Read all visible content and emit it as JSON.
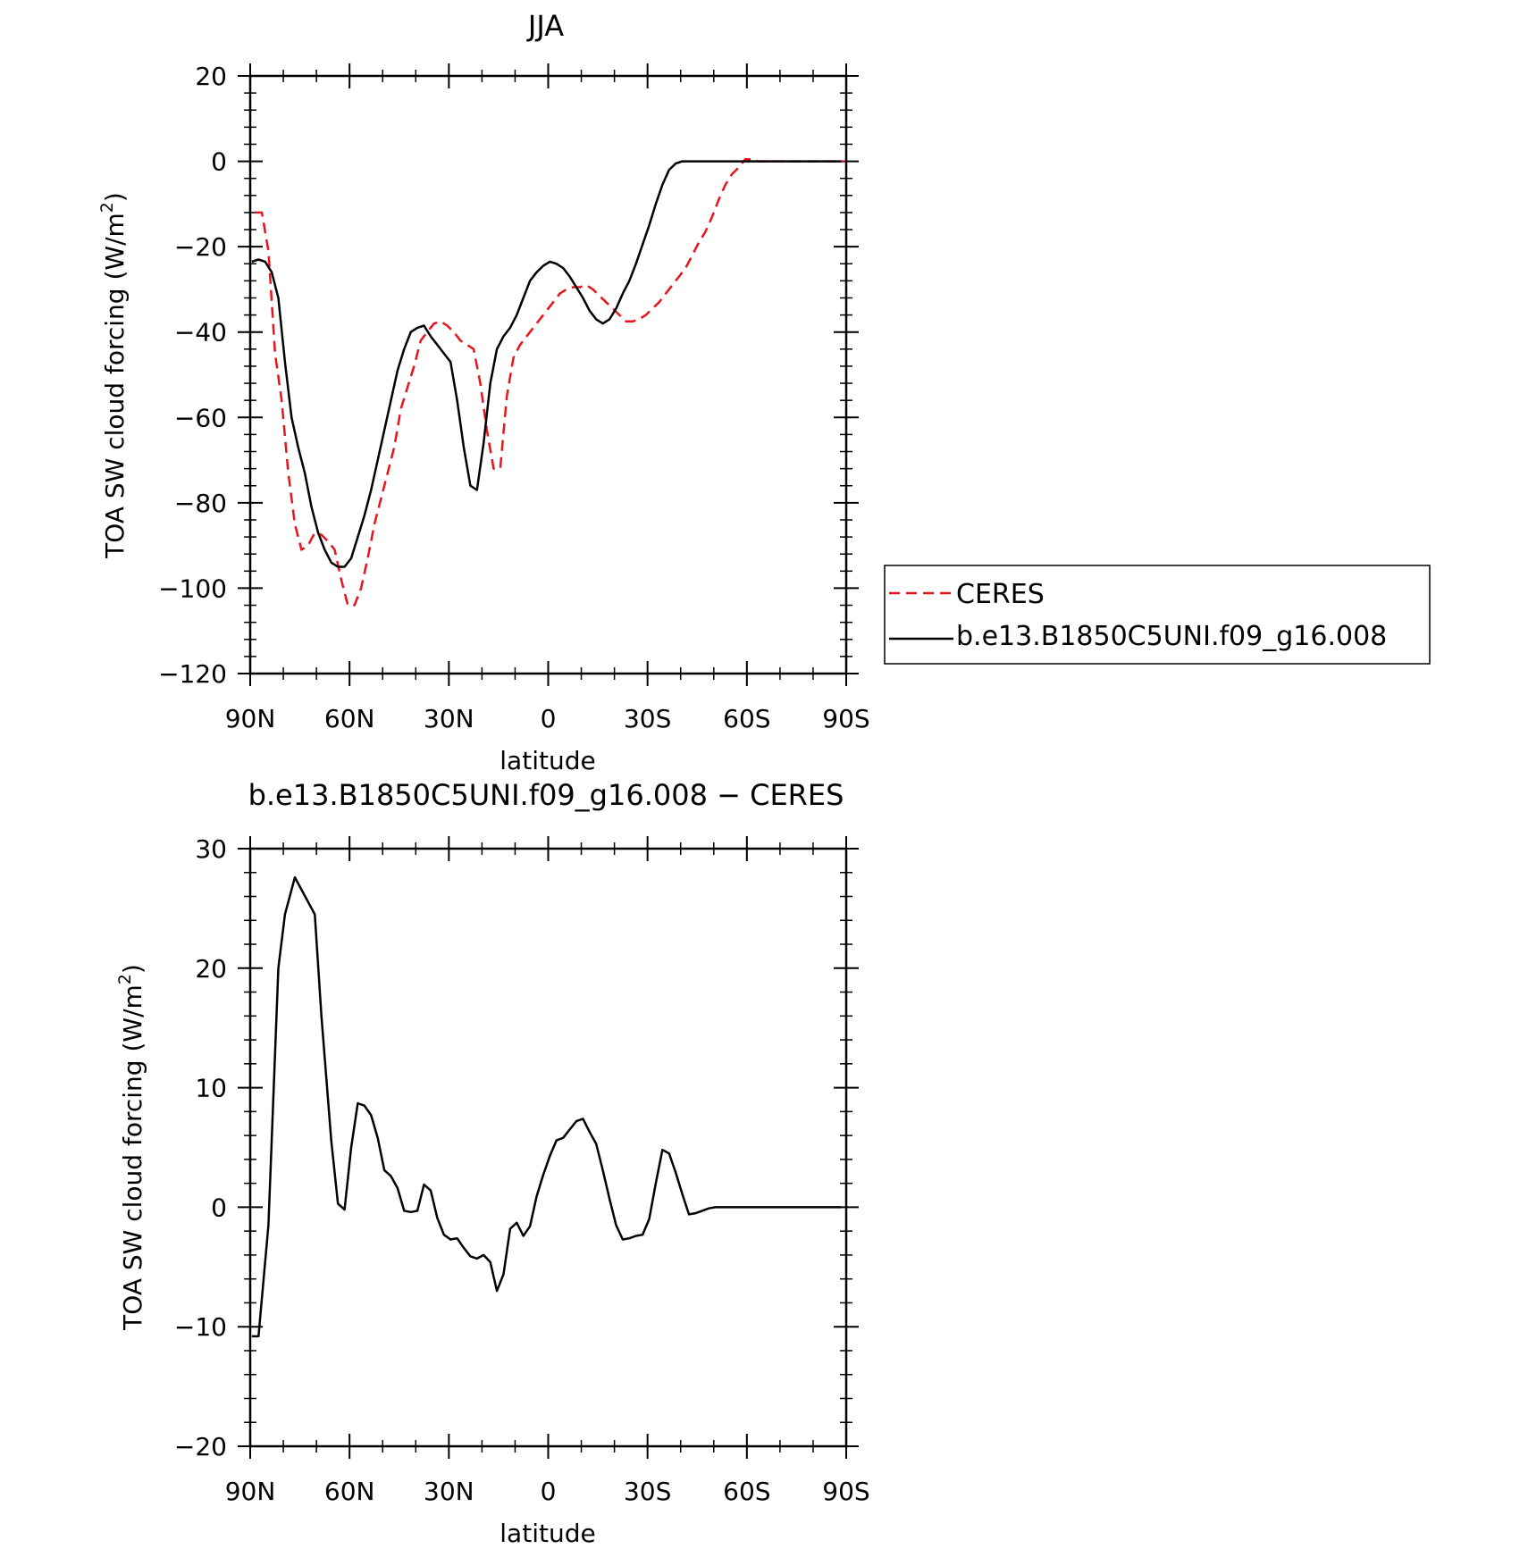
{
  "chart_data": [
    {
      "type": "line",
      "title": "JJA",
      "xlabel": "latitude",
      "ylabel": "TOA SW cloud forcing (W/m²)",
      "ylabel_base": "TOA SW cloud forcing (W/m",
      "ylabel_sup": "2",
      "ylabel_end": ")",
      "xlim": [
        90,
        -90
      ],
      "ylim": [
        -120,
        20
      ],
      "xticks": [
        90,
        60,
        30,
        0,
        -30,
        -60,
        -90
      ],
      "xticklabels": [
        "90N",
        "60N",
        "30N",
        "0",
        "30S",
        "60S",
        "90S"
      ],
      "yticks": [
        -120,
        -100,
        -80,
        -60,
        -40,
        -20,
        0,
        20
      ],
      "yticklabels": [
        "−120",
        "−100",
        "−80",
        "−60",
        "−40",
        "−20",
        "0",
        "20"
      ],
      "legend_position": "right",
      "series": [
        {
          "name": "CERES",
          "color": "#e8141c",
          "dash": true,
          "x": [
            88.5,
            86.5,
            84.5,
            82.5,
            80.5,
            78.5,
            76.5,
            74.5,
            72.5,
            70.5,
            68.5,
            66.5,
            64.5,
            62.5,
            60.5,
            58.5,
            56.5,
            54.5,
            52.5,
            50.5,
            48.5,
            46.5,
            44.5,
            42.5,
            40.5,
            38.5,
            36.5,
            34.5,
            32.5,
            30.5,
            28.5,
            26.5,
            24.5,
            22.5,
            20.5,
            18.5,
            16.5,
            14.5,
            12.5,
            10.5,
            8.5,
            6.5,
            4.5,
            2.5,
            0.5,
            -1.5,
            -3.5,
            -5.5,
            -7.5,
            -9.5,
            -11.5,
            -13.5,
            -15.5,
            -17.5,
            -19.5,
            -21.5,
            -23.5,
            -25.5,
            -27.5,
            -29.5,
            -31.5,
            -33.5,
            -35.5,
            -37.5,
            -39.5,
            -41.5,
            -43.5,
            -45.5,
            -47.5,
            -49.5,
            -51.5,
            -53.5,
            -55.5,
            -57.5,
            -59.5,
            -61.5,
            -63.5,
            -65.5,
            -67.5,
            -69.5,
            -71.5,
            -73.5,
            -75.5,
            -77.5,
            -79.5,
            -81.5,
            -83.5,
            -85.5,
            -87.5,
            -89.5
          ],
          "y": [
            -12,
            -12,
            -21,
            -45,
            -56,
            -73,
            -85,
            -91,
            -90,
            -87,
            -87.5,
            -89,
            -91,
            -98,
            -104,
            -104,
            -100,
            -93,
            -85,
            -79,
            -73,
            -67,
            -58,
            -53,
            -48,
            -42,
            -40,
            -38,
            -37.5,
            -38.5,
            -40,
            -42,
            -43,
            -44,
            -52,
            -63,
            -72,
            -72,
            -55,
            -46,
            -43,
            -41,
            -39,
            -37,
            -35,
            -33,
            -31,
            -30,
            -29.5,
            -29.5,
            -29,
            -30,
            -31.5,
            -33,
            -34.5,
            -36,
            -37.5,
            -37.5,
            -37,
            -36,
            -34.5,
            -33,
            -31,
            -29,
            -27,
            -25,
            -22,
            -19,
            -16.5,
            -13,
            -9,
            -5.5,
            -3,
            -1.5,
            0.5,
            0.5,
            0,
            0,
            0,
            0,
            0,
            0,
            0,
            0,
            0,
            0,
            0,
            0,
            0,
            0
          ]
        },
        {
          "name": "b.e13.B1850C5UNI.f09_g16.008",
          "color": "#000000",
          "dash": false,
          "x": [
            89.5,
            87.5,
            85.5,
            83.5,
            81.5,
            79.5,
            77.5,
            75.5,
            73.5,
            71.5,
            69.5,
            67.5,
            65.5,
            63.5,
            61.5,
            59.5,
            57.5,
            55.5,
            53.5,
            51.5,
            49.5,
            47.5,
            45.5,
            43.5,
            41.5,
            39.5,
            37.5,
            35.5,
            33.5,
            31.5,
            29.5,
            27.5,
            25.5,
            23.5,
            21.5,
            19.5,
            17.5,
            15.5,
            13.5,
            11.5,
            9.5,
            7.5,
            5.5,
            3.5,
            1.5,
            -0.5,
            -2.5,
            -4.5,
            -6.5,
            -8.5,
            -10.5,
            -12.5,
            -14.5,
            -16.5,
            -18.5,
            -20.5,
            -22.5,
            -24.5,
            -26.5,
            -28.5,
            -30.5,
            -32.5,
            -34.5,
            -36.5,
            -38.5,
            -40.5,
            -42.5,
            -44.5,
            -46.5,
            -48.5,
            -50.5,
            -52.5,
            -54.5,
            -56.5,
            -58.5,
            -60.5,
            -62.5,
            -64.5,
            -66.5,
            -68.5,
            -70.5,
            -72.5,
            -74.5,
            -76.5,
            -78.5,
            -80.5,
            -82.5,
            -84.5,
            -86.5,
            -88.5
          ],
          "y": [
            -23.5,
            -23,
            -23.5,
            -26,
            -32,
            -47,
            -60,
            -67,
            -73,
            -81,
            -87,
            -91,
            -94,
            -95,
            -95,
            -93,
            -88,
            -83,
            -77,
            -70,
            -63,
            -56,
            -49,
            -44,
            -40,
            -39,
            -38.5,
            -41,
            -43,
            -45,
            -47,
            -56,
            -67,
            -76,
            -77,
            -66,
            -52,
            -44,
            -41,
            -39,
            -36,
            -32,
            -28,
            -26,
            -24.5,
            -23.5,
            -24,
            -25,
            -27,
            -29.5,
            -32,
            -35,
            -37,
            -38,
            -37,
            -34.5,
            -31,
            -28,
            -24,
            -19.5,
            -15,
            -10,
            -5.5,
            -2,
            -0.5,
            0,
            0,
            0,
            0,
            0,
            0,
            0,
            0,
            0,
            0,
            0,
            0,
            0,
            0,
            0,
            0,
            0,
            0,
            0,
            0,
            0,
            0,
            0,
            0,
            0
          ]
        }
      ]
    },
    {
      "type": "line",
      "title": "b.e13.B1850C5UNI.f09_g16.008 − CERES",
      "xlabel": "latitude",
      "ylabel": "TOA SW cloud forcing (W/m²)",
      "ylabel_base": "TOA SW cloud forcing (W/m",
      "ylabel_sup": "2",
      "ylabel_end": ")",
      "xlim": [
        90,
        -90
      ],
      "ylim": [
        -20,
        30
      ],
      "xticks": [
        90,
        60,
        30,
        0,
        -30,
        -60,
        -90
      ],
      "xticklabels": [
        "90N",
        "60N",
        "30N",
        "0",
        "30S",
        "60S",
        "90S"
      ],
      "yticks": [
        -20,
        -10,
        0,
        10,
        20,
        30
      ],
      "yticklabels": [
        "−20",
        "−10",
        "0",
        "10",
        "20",
        "30"
      ],
      "series": [
        {
          "name": "",
          "color": "#000000",
          "dash": false,
          "x": [
            89.5,
            87.5,
            84.5,
            81.5,
            79.5,
            76.5,
            70.5,
            68.5,
            65.5,
            63.5,
            61.5,
            59.5,
            57.5,
            55.5,
            53.5,
            51.5,
            49.5,
            47.5,
            45.5,
            43.5,
            41.5,
            39.5,
            37.5,
            35.5,
            33.5,
            31.5,
            29.5,
            27.5,
            25.5,
            23.5,
            21.5,
            19.5,
            17.5,
            15.5,
            13.5,
            11.5,
            9.5,
            7.5,
            5.5,
            3.5,
            1.5,
            -0.5,
            -2.5,
            -4.5,
            -6.5,
            -8.5,
            -10.5,
            -12.5,
            -14.5,
            -16.5,
            -18.5,
            -20.5,
            -22.5,
            -24.5,
            -26.5,
            -28.5,
            -30.5,
            -32.5,
            -34.5,
            -36.5,
            -38.5,
            -40.5,
            -42.5,
            -44.5,
            -46.5,
            -48.5,
            -50.5,
            -52.5,
            -54.5,
            -56.5,
            -58.5,
            -60.5,
            -62.5,
            -64.5,
            -66.5,
            -68.5,
            -70.5,
            -72.5,
            -74.5,
            -76.5,
            -78.5,
            -80.5,
            -82.5,
            -84.5,
            -86.5,
            -88.5
          ],
          "y": [
            -10.8,
            -10.8,
            -1.5,
            20,
            24.5,
            27.6,
            24.5,
            16,
            5.5,
            0.3,
            -0.2,
            5,
            8.7,
            8.5,
            7.7,
            5.8,
            3.1,
            2.6,
            1.6,
            -0.3,
            -0.4,
            -0.3,
            1.9,
            1.4,
            -0.9,
            -2.3,
            -2.7,
            -2.6,
            -3.4,
            -4.1,
            -4.3,
            -4,
            -4.6,
            -7,
            -5.6,
            -1.8,
            -1.3,
            -2.4,
            -1.6,
            0.9,
            2.7,
            4.3,
            5.6,
            5.8,
            6.5,
            7.2,
            7.4,
            6.3,
            5.3,
            3.1,
            0.7,
            -1.5,
            -2.7,
            -2.6,
            -2.4,
            -2.3,
            -1,
            2,
            4.8,
            4.5,
            2.9,
            1.1,
            -0.6,
            -0.5,
            -0.3,
            -0.1,
            0,
            0,
            0,
            0,
            0,
            0,
            0,
            0,
            0,
            0,
            0,
            0,
            0,
            0,
            0,
            0,
            0,
            0,
            0,
            0
          ]
        }
      ]
    }
  ]
}
